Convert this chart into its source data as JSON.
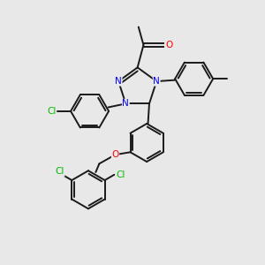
{
  "bg_color": "#e8e8e8",
  "bond_color": "#1a1a1a",
  "N_color": "#0000ff",
  "O_color": "#ff0000",
  "Cl_color": "#00bb00",
  "lw": 1.4,
  "dbo": 0.045,
  "figsize": [
    3.0,
    3.0
  ],
  "dpi": 100,
  "xlim": [
    -2.2,
    2.5
  ],
  "ylim": [
    -3.2,
    2.0
  ]
}
